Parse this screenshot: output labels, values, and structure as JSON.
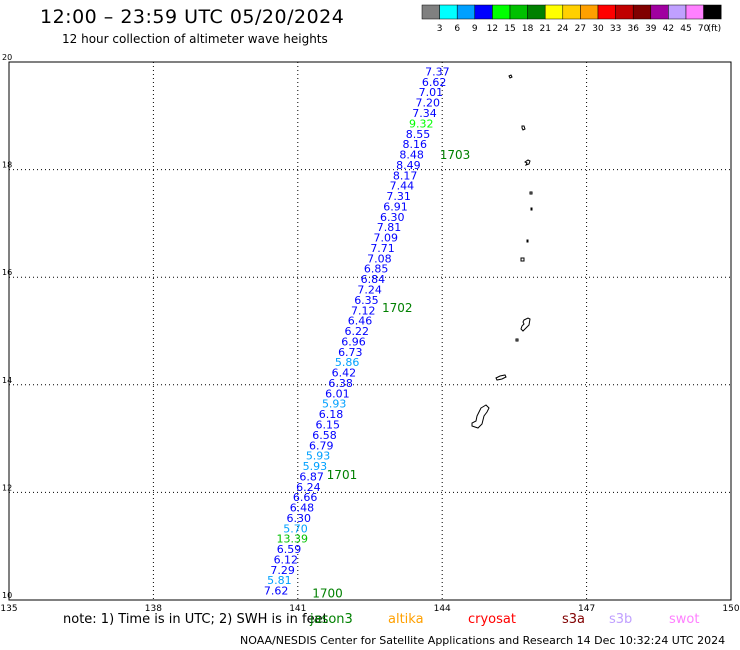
{
  "title": "12:00 – 23:59 UTC 05/20/2024",
  "subtitle": "12 hour collection of altimeter wave heights",
  "legend": {
    "colors": [
      "#808080",
      "#00ffff",
      "#00a0ff",
      "#0000ff",
      "#00ff00",
      "#00c000",
      "#008000",
      "#ffff00",
      "#ffd000",
      "#ffa000",
      "#ff0000",
      "#c00000",
      "#800000",
      "#a000a0",
      "#c0a0ff",
      "#ff80ff",
      "#000000"
    ],
    "labels": [
      "3",
      "6",
      "9",
      "12",
      "15",
      "18",
      "21",
      "24",
      "27",
      "30",
      "33",
      "36",
      "39",
      "42",
      "45",
      "70"
    ],
    "unit": "(ft)"
  },
  "map": {
    "lon_ticks": [
      "135",
      "138",
      "141",
      "144",
      "147",
      "150"
    ],
    "lat_ticks": [
      "10",
      "12",
      "14",
      "16",
      "18",
      "20"
    ],
    "lon_range": [
      135,
      150
    ],
    "lat_range": [
      10,
      20
    ],
    "passes": [
      {
        "label": "1700",
        "lon": 141.3,
        "lat": 10.05
      },
      {
        "label": "1701",
        "lon": 141.6,
        "lat": 12.25
      },
      {
        "label": "1702",
        "lon": 142.75,
        "lat": 15.35
      },
      {
        "label": "1703",
        "lon": 143.95,
        "lat": 18.2
      }
    ]
  },
  "wave_values": [
    "7.37",
    "6.62",
    "7.01",
    "7.20",
    "7.34",
    "9.32",
    "8.55",
    "8.16",
    "8.48",
    "8.49",
    "8.17",
    "7.44",
    "7.31",
    "6.91",
    "6.30",
    "7.81",
    "7.09",
    "7.71",
    "7.08",
    "6.85",
    "6.84",
    "7.24",
    "6.35",
    "7.12",
    "6.46",
    "6.22",
    "6.96",
    "6.73",
    "5.86",
    "6.42",
    "6.38",
    "6.01",
    "5.93",
    "6.18",
    "6.15",
    "6.58",
    "6.79",
    "5.93",
    "5.93",
    "6.87",
    "6.24",
    "6.66",
    "6.48",
    "6.30",
    "5.70",
    "13.39",
    "6.59",
    "6.12",
    "7.29",
    "5.81",
    "7.62"
  ],
  "note": "note: 1) Time is in UTC; 2) SWH is in feet",
  "satellites": [
    {
      "name": "jason3",
      "color": "#008000"
    },
    {
      "name": "altika",
      "color": "#ffa000"
    },
    {
      "name": "cryosat",
      "color": "#ff0000"
    },
    {
      "name": "s3a",
      "color": "#800000"
    },
    {
      "name": "s3b",
      "color": "#c0a0ff"
    },
    {
      "name": "swot",
      "color": "#ff80ff"
    }
  ],
  "credit": "NOAA/NESDIS Center for Satellite Applications and Research   14 Dec 10:32:24 UTC 2024"
}
